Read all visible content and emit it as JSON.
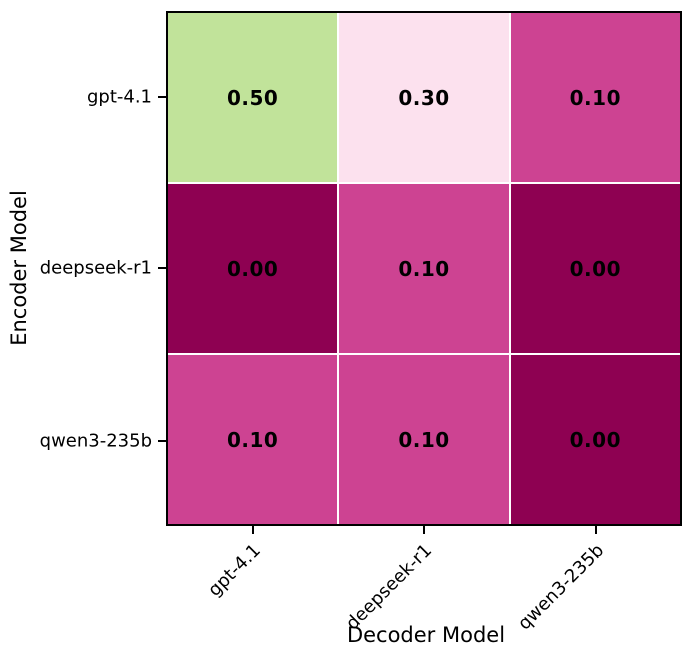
{
  "chart_data": {
    "type": "heatmap",
    "title": "",
    "xlabel": "Decoder Model",
    "ylabel": "Encoder Model",
    "x_categories": [
      "gpt-4.1",
      "deepseek-r1",
      "qwen3-235b"
    ],
    "y_categories": [
      "gpt-4.1",
      "deepseek-r1",
      "qwen3-235b"
    ],
    "values": [
      [
        0.5,
        0.3,
        0.1
      ],
      [
        0.0,
        0.1,
        0.0
      ],
      [
        0.1,
        0.1,
        0.0
      ]
    ],
    "cell_labels": [
      [
        "0.50",
        "0.30",
        "0.10"
      ],
      [
        "0.00",
        "0.10",
        "0.00"
      ],
      [
        "0.10",
        "0.10",
        "0.00"
      ]
    ],
    "cell_colors": [
      [
        "#c1e39a",
        "#fce1ee",
        "#cd4392"
      ],
      [
        "#8e0152",
        "#cd4392",
        "#8e0152"
      ],
      [
        "#cd4392",
        "#cd4392",
        "#8e0152"
      ]
    ],
    "value_range": [
      0.0,
      0.5
    ],
    "legend_position": "none",
    "grid": "white cell separators",
    "colors": {
      "cell_text": "#000000",
      "grid_lines": "#ffffff",
      "plot_border": "#000000",
      "tick_text": "#000000",
      "background": "#ffffff"
    }
  }
}
